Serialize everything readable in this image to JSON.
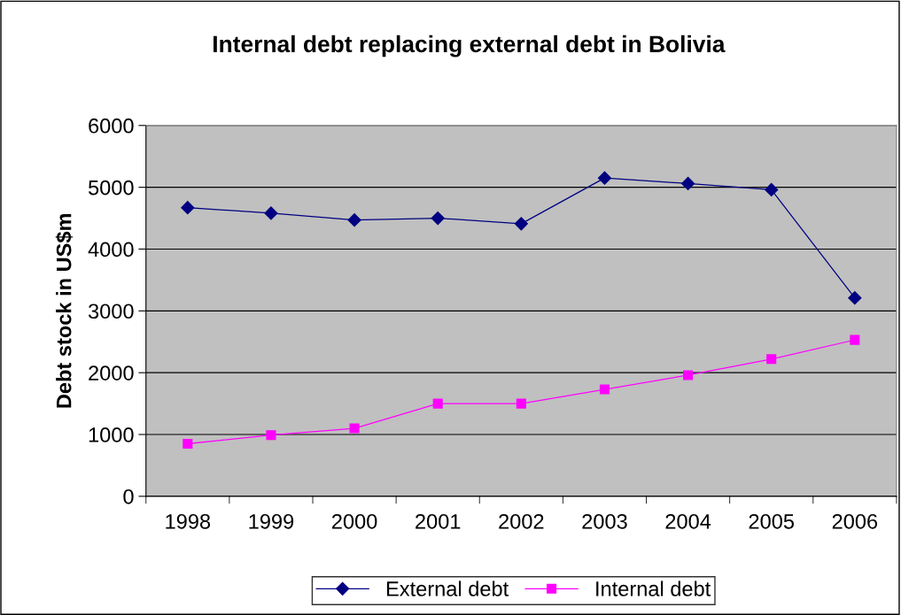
{
  "chart_data": {
    "type": "line",
    "title": "Internal debt replacing external debt in Bolivia",
    "ylabel": "Debt stock in US$m",
    "categories": [
      "1998",
      "1999",
      "2000",
      "2001",
      "2002",
      "2003",
      "2004",
      "2005",
      "2006"
    ],
    "series": [
      {
        "name": "External debt",
        "color": "#000080",
        "marker": "diamond",
        "values": [
          4670,
          4580,
          4470,
          4500,
          4410,
          5150,
          5060,
          4960,
          3210
        ]
      },
      {
        "name": "Internal debt",
        "color": "#ff00ff",
        "marker": "square",
        "values": [
          850,
          990,
          1100,
          1500,
          1500,
          1730,
          1960,
          2220,
          2530
        ]
      }
    ],
    "ylim": [
      0,
      6000
    ],
    "yticks": [
      0,
      1000,
      2000,
      3000,
      4000,
      5000,
      6000
    ],
    "grid": "y",
    "legend": "bottom",
    "line_style": "solid"
  }
}
